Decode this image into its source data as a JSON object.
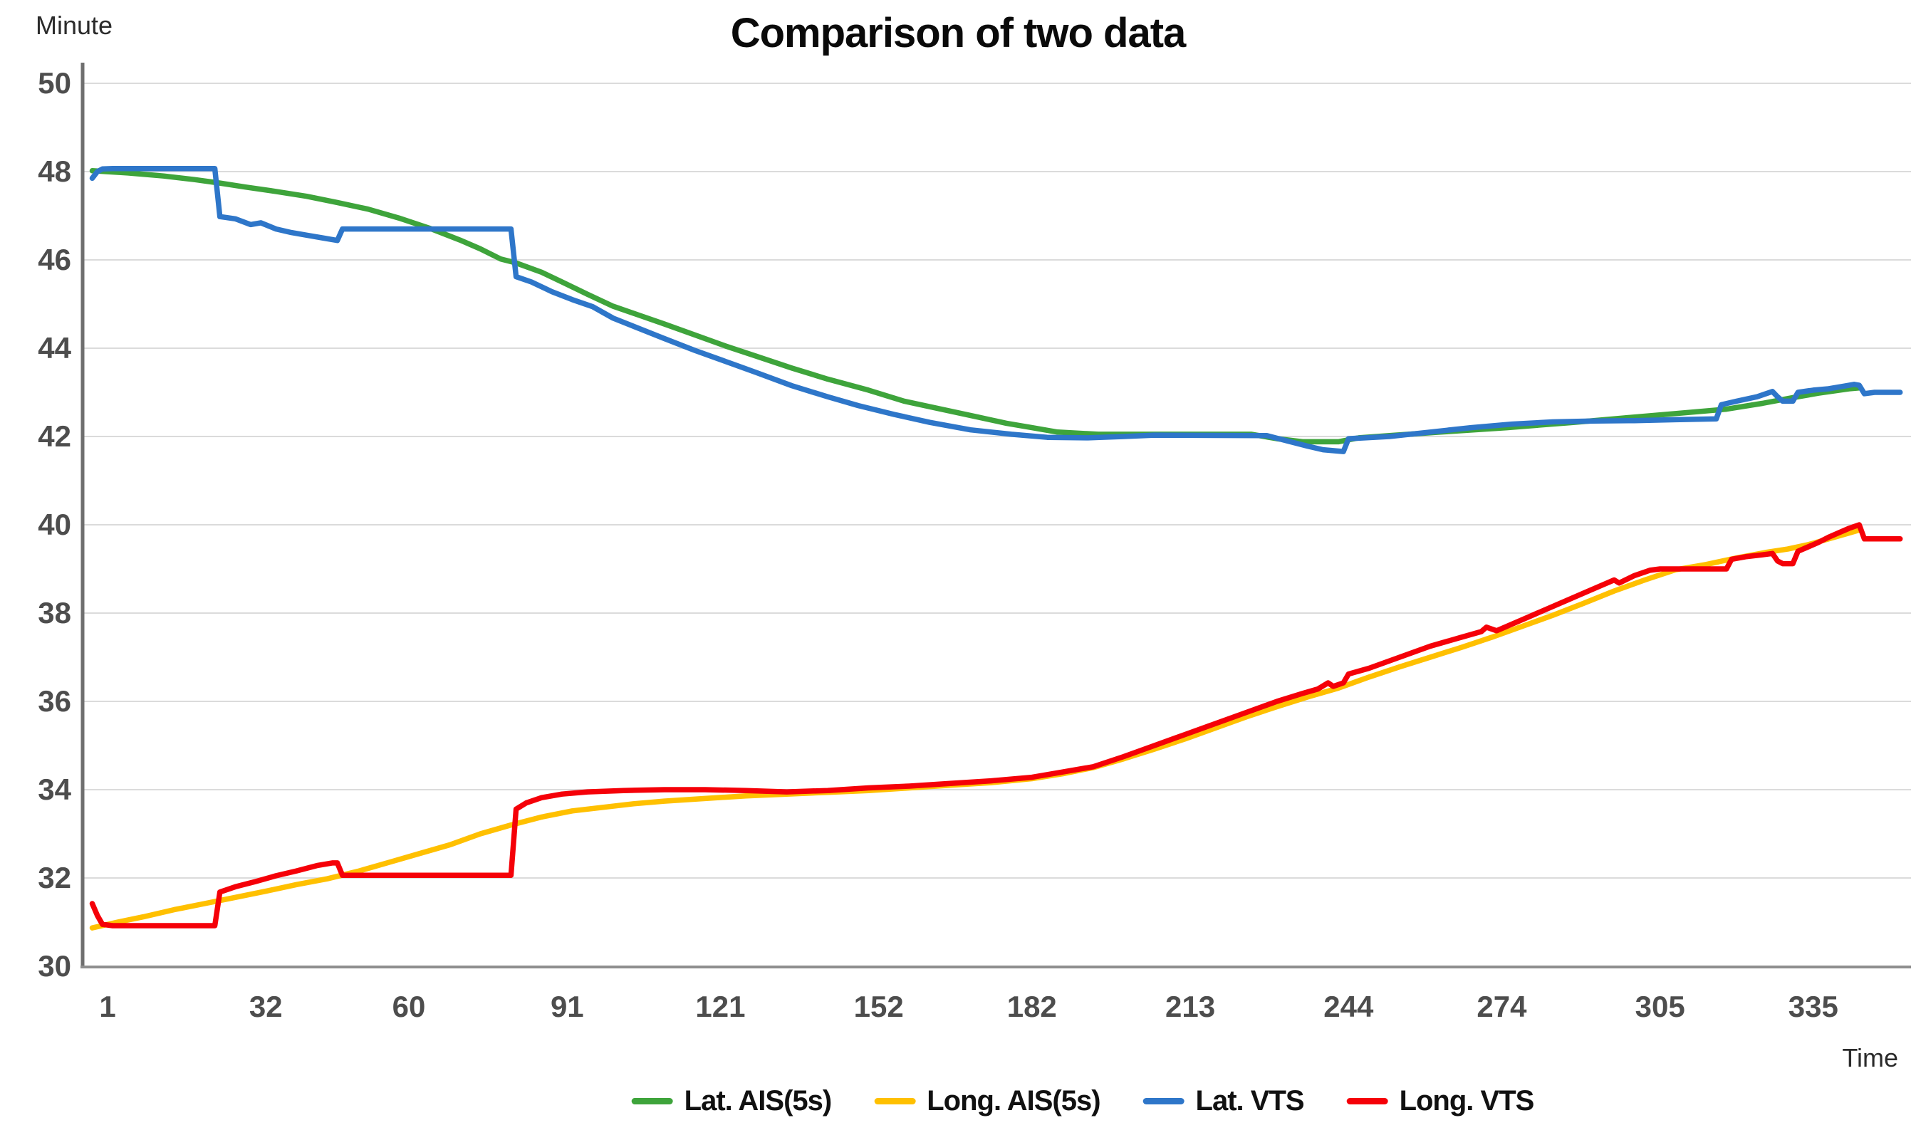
{
  "title": "Comparison of two data",
  "colors": {
    "green": "#3EA43B",
    "yellow": "#FFC000",
    "blue": "#2E76C9",
    "red": "#F50008",
    "grid": "#DBDBDB",
    "axis_y": "#6F6F6F",
    "axis_x": "#8F8F8F",
    "tick_text": "#4D4D4D",
    "title_text": "#0A0A0A"
  },
  "y_axis": {
    "label": "Minute",
    "ticks": [
      50,
      48,
      46,
      44,
      42,
      40,
      38,
      36,
      34,
      32,
      30
    ]
  },
  "x_axis": {
    "label": "Time",
    "ticks": [
      1,
      32,
      60,
      91,
      121,
      152,
      182,
      213,
      244,
      274,
      305,
      335
    ]
  },
  "legend": {
    "items": [
      {
        "label": "Lat. AIS(5s)",
        "color": "#3EA43B"
      },
      {
        "label": "Long. AIS(5s)",
        "color": "#FFC000"
      },
      {
        "label": "Lat. VTS",
        "color": "#2E76C9"
      },
      {
        "label": "Long. VTS",
        "color": "#F50008"
      }
    ]
  },
  "chart_data": {
    "type": "line",
    "title": "Comparison of two data",
    "xlabel": "Time",
    "ylabel": "Minute",
    "x_range": [
      1,
      352
    ],
    "y_range": [
      30,
      50
    ],
    "grid": "horizontal",
    "legend_position": "bottom",
    "x_tick_values": [
      1,
      32,
      60,
      91,
      121,
      152,
      182,
      213,
      244,
      274,
      305,
      335
    ],
    "y_tick_values": [
      50,
      48,
      46,
      44,
      42,
      40,
      38,
      36,
      34,
      32,
      30
    ],
    "series": [
      {
        "name": "Lat. AIS(5s)",
        "color": "#3EA43B",
        "points": [
          [
            -2,
            48.02
          ],
          [
            5,
            47.97
          ],
          [
            12,
            47.9
          ],
          [
            18,
            47.82
          ],
          [
            23,
            47.74
          ],
          [
            28,
            47.65
          ],
          [
            34,
            47.55
          ],
          [
            40,
            47.44
          ],
          [
            46,
            47.3
          ],
          [
            52,
            47.15
          ],
          [
            58,
            46.95
          ],
          [
            64,
            46.72
          ],
          [
            70,
            46.45
          ],
          [
            74,
            46.25
          ],
          [
            78,
            46.02
          ],
          [
            81,
            45.93
          ],
          [
            86,
            45.72
          ],
          [
            90,
            45.5
          ],
          [
            95,
            45.22
          ],
          [
            100,
            44.95
          ],
          [
            105,
            44.75
          ],
          [
            110,
            44.55
          ],
          [
            116,
            44.3
          ],
          [
            122,
            44.05
          ],
          [
            128,
            43.82
          ],
          [
            135,
            43.55
          ],
          [
            142,
            43.3
          ],
          [
            150,
            43.05
          ],
          [
            157,
            42.8
          ],
          [
            165,
            42.6
          ],
          [
            171,
            42.45
          ],
          [
            177,
            42.3
          ],
          [
            182,
            42.2
          ],
          [
            187,
            42.1
          ],
          [
            195,
            42.05
          ],
          [
            225,
            42.05
          ],
          [
            230,
            41.95
          ],
          [
            235,
            41.88
          ],
          [
            242,
            41.88
          ],
          [
            246,
            41.97
          ],
          [
            252,
            42.02
          ],
          [
            262,
            42.1
          ],
          [
            275,
            42.2
          ],
          [
            288,
            42.32
          ],
          [
            298,
            42.42
          ],
          [
            308,
            42.52
          ],
          [
            318,
            42.62
          ],
          [
            325,
            42.75
          ],
          [
            331,
            42.88
          ],
          [
            336,
            42.98
          ],
          [
            342,
            43.08
          ],
          [
            344,
            43.1
          ]
        ]
      },
      {
        "name": "Long. AIS(5s)",
        "color": "#FFC000",
        "points": [
          [
            -2,
            30.87
          ],
          [
            3,
            31.0
          ],
          [
            8,
            31.12
          ],
          [
            14,
            31.28
          ],
          [
            20,
            31.42
          ],
          [
            26,
            31.56
          ],
          [
            32,
            31.7
          ],
          [
            38,
            31.85
          ],
          [
            44,
            31.98
          ],
          [
            50,
            32.15
          ],
          [
            56,
            32.35
          ],
          [
            62,
            32.55
          ],
          [
            68,
            32.75
          ],
          [
            74,
            33.0
          ],
          [
            80,
            33.2
          ],
          [
            86,
            33.38
          ],
          [
            92,
            33.52
          ],
          [
            98,
            33.6
          ],
          [
            104,
            33.68
          ],
          [
            110,
            33.74
          ],
          [
            118,
            33.8
          ],
          [
            126,
            33.86
          ],
          [
            134,
            33.9
          ],
          [
            142,
            33.94
          ],
          [
            150,
            33.98
          ],
          [
            158,
            34.04
          ],
          [
            166,
            34.1
          ],
          [
            174,
            34.16
          ],
          [
            182,
            34.25
          ],
          [
            188,
            34.36
          ],
          [
            194,
            34.5
          ],
          [
            200,
            34.7
          ],
          [
            206,
            34.92
          ],
          [
            212,
            35.15
          ],
          [
            218,
            35.4
          ],
          [
            224,
            35.65
          ],
          [
            230,
            35.88
          ],
          [
            236,
            36.1
          ],
          [
            242,
            36.3
          ],
          [
            248,
            36.55
          ],
          [
            254,
            36.78
          ],
          [
            260,
            37.0
          ],
          [
            266,
            37.22
          ],
          [
            272,
            37.45
          ],
          [
            278,
            37.7
          ],
          [
            284,
            37.95
          ],
          [
            290,
            38.22
          ],
          [
            296,
            38.5
          ],
          [
            302,
            38.75
          ],
          [
            308,
            38.98
          ],
          [
            314,
            39.1
          ],
          [
            320,
            39.25
          ],
          [
            326,
            39.38
          ],
          [
            330,
            39.45
          ],
          [
            334,
            39.55
          ],
          [
            338,
            39.68
          ],
          [
            341,
            39.78
          ],
          [
            344,
            39.88
          ]
        ]
      },
      {
        "name": "Lat. VTS",
        "color": "#2E76C9",
        "points": [
          [
            -2,
            47.85
          ],
          [
            -1,
            48.0
          ],
          [
            0,
            48.06
          ],
          [
            2,
            48.07
          ],
          [
            22,
            48.07
          ],
          [
            23,
            46.98
          ],
          [
            26,
            46.93
          ],
          [
            29,
            46.8
          ],
          [
            31,
            46.84
          ],
          [
            34,
            46.7
          ],
          [
            37,
            46.62
          ],
          [
            40,
            46.56
          ],
          [
            43,
            46.5
          ],
          [
            46,
            46.44
          ],
          [
            47,
            46.7
          ],
          [
            80,
            46.7
          ],
          [
            81,
            45.62
          ],
          [
            84,
            45.5
          ],
          [
            88,
            45.28
          ],
          [
            92,
            45.1
          ],
          [
            96,
            44.94
          ],
          [
            100,
            44.68
          ],
          [
            105,
            44.45
          ],
          [
            110,
            44.22
          ],
          [
            116,
            43.95
          ],
          [
            122,
            43.7
          ],
          [
            128,
            43.45
          ],
          [
            135,
            43.15
          ],
          [
            142,
            42.9
          ],
          [
            148,
            42.7
          ],
          [
            155,
            42.5
          ],
          [
            162,
            42.32
          ],
          [
            170,
            42.15
          ],
          [
            178,
            42.05
          ],
          [
            185,
            41.98
          ],
          [
            193,
            41.97
          ],
          [
            200,
            42.0
          ],
          [
            206,
            42.03
          ],
          [
            228,
            42.02
          ],
          [
            232,
            41.9
          ],
          [
            236,
            41.78
          ],
          [
            239,
            41.7
          ],
          [
            243,
            41.66
          ],
          [
            244,
            41.95
          ],
          [
            252,
            42.0
          ],
          [
            260,
            42.1
          ],
          [
            268,
            42.2
          ],
          [
            276,
            42.28
          ],
          [
            284,
            42.33
          ],
          [
            292,
            42.35
          ],
          [
            300,
            42.36
          ],
          [
            308,
            42.38
          ],
          [
            316,
            42.4
          ],
          [
            317,
            42.72
          ],
          [
            320,
            42.8
          ],
          [
            324,
            42.9
          ],
          [
            327,
            43.02
          ],
          [
            328,
            42.9
          ],
          [
            329,
            42.8
          ],
          [
            331,
            42.8
          ],
          [
            332,
            43.0
          ],
          [
            335,
            43.05
          ],
          [
            338,
            43.08
          ],
          [
            341,
            43.14
          ],
          [
            343,
            43.18
          ],
          [
            344,
            43.16
          ],
          [
            345,
            42.97
          ],
          [
            347,
            43.0
          ],
          [
            352,
            43.0
          ]
        ]
      },
      {
        "name": "Long. VTS",
        "color": "#F50008",
        "points": [
          [
            -2,
            31.42
          ],
          [
            -1,
            31.15
          ],
          [
            0,
            30.95
          ],
          [
            2,
            30.92
          ],
          [
            22,
            30.92
          ],
          [
            23,
            31.68
          ],
          [
            26,
            31.8
          ],
          [
            30,
            31.92
          ],
          [
            34,
            32.05
          ],
          [
            38,
            32.16
          ],
          [
            42,
            32.28
          ],
          [
            45,
            32.34
          ],
          [
            46,
            32.34
          ],
          [
            47,
            32.06
          ],
          [
            80,
            32.06
          ],
          [
            81,
            33.56
          ],
          [
            83,
            33.7
          ],
          [
            86,
            33.82
          ],
          [
            90,
            33.9
          ],
          [
            95,
            33.95
          ],
          [
            102,
            33.98
          ],
          [
            110,
            34.0
          ],
          [
            118,
            34.0
          ],
          [
            126,
            33.98
          ],
          [
            134,
            33.95
          ],
          [
            142,
            33.98
          ],
          [
            150,
            34.04
          ],
          [
            158,
            34.08
          ],
          [
            166,
            34.14
          ],
          [
            174,
            34.2
          ],
          [
            182,
            34.28
          ],
          [
            188,
            34.4
          ],
          [
            194,
            34.52
          ],
          [
            200,
            34.75
          ],
          [
            206,
            35.0
          ],
          [
            212,
            35.25
          ],
          [
            218,
            35.5
          ],
          [
            224,
            35.75
          ],
          [
            230,
            36.0
          ],
          [
            235,
            36.18
          ],
          [
            238,
            36.28
          ],
          [
            240,
            36.42
          ],
          [
            241,
            36.34
          ],
          [
            243,
            36.42
          ],
          [
            244,
            36.62
          ],
          [
            248,
            36.75
          ],
          [
            254,
            37.0
          ],
          [
            260,
            37.25
          ],
          [
            266,
            37.45
          ],
          [
            270,
            37.58
          ],
          [
            271,
            37.68
          ],
          [
            273,
            37.6
          ],
          [
            278,
            37.85
          ],
          [
            284,
            38.15
          ],
          [
            290,
            38.45
          ],
          [
            294,
            38.65
          ],
          [
            296,
            38.75
          ],
          [
            297,
            38.68
          ],
          [
            300,
            38.85
          ],
          [
            303,
            38.97
          ],
          [
            305,
            39.0
          ],
          [
            318,
            39.0
          ],
          [
            319,
            39.22
          ],
          [
            322,
            39.28
          ],
          [
            325,
            39.32
          ],
          [
            327,
            39.35
          ],
          [
            328,
            39.18
          ],
          [
            329,
            39.12
          ],
          [
            331,
            39.12
          ],
          [
            332,
            39.4
          ],
          [
            334,
            39.5
          ],
          [
            336,
            39.6
          ],
          [
            338,
            39.72
          ],
          [
            340,
            39.82
          ],
          [
            342,
            39.92
          ],
          [
            344,
            40.0
          ],
          [
            345,
            39.68
          ],
          [
            352,
            39.68
          ]
        ]
      }
    ]
  }
}
